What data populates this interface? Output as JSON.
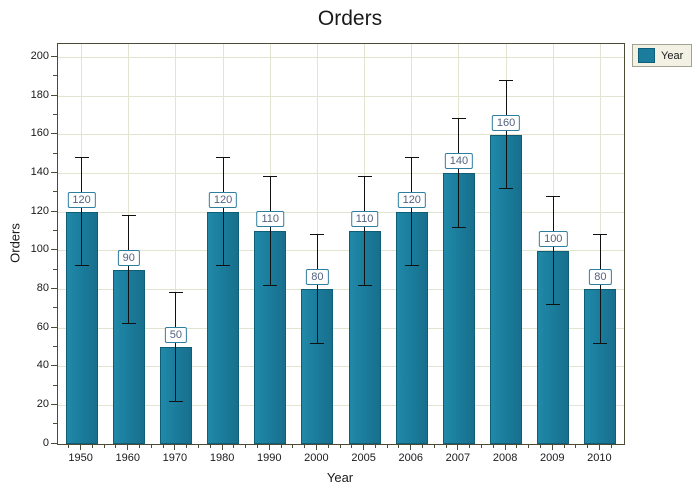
{
  "chart_data": {
    "type": "bar",
    "title": "Orders",
    "xlabel": "Year",
    "ylabel": "Orders",
    "categories": [
      "1950",
      "1960",
      "1970",
      "1980",
      "1990",
      "2000",
      "2005",
      "2006",
      "2007",
      "2008",
      "2009",
      "2010"
    ],
    "series": [
      {
        "name": "Year",
        "values": [
          120,
          90,
          50,
          120,
          110,
          80,
          110,
          120,
          140,
          160,
          100,
          80
        ],
        "error_bar_plus": 28,
        "error_bar_minus": 28
      }
    ],
    "bar_value_labels": [
      "120",
      "90",
      "50",
      "120",
      "110",
      "80",
      "110",
      "120",
      "140",
      "160",
      "100",
      "80"
    ],
    "ylim": [
      0,
      207
    ],
    "yticks": [
      0,
      20,
      40,
      60,
      80,
      100,
      120,
      140,
      160,
      180,
      200
    ],
    "ytick_minor_step": 10,
    "grid": true,
    "legend": {
      "label": "Year",
      "position": "top-right"
    }
  },
  "style": {
    "bar_fill": "#1b7d9d",
    "bar_fill_light": "#2189a8",
    "bar_fill_dark": "#186f8d",
    "bar_border": "#0f5e78",
    "grid_color": "#e3e3d2",
    "axis_color": "#4c4b38",
    "error_color": "#111111",
    "label_text": "#53627f",
    "label_border": "#2e7ea0",
    "legend_bg": "#f2f1e3",
    "legend_border": "#a3a392",
    "title_color": "#1a1a1a"
  }
}
